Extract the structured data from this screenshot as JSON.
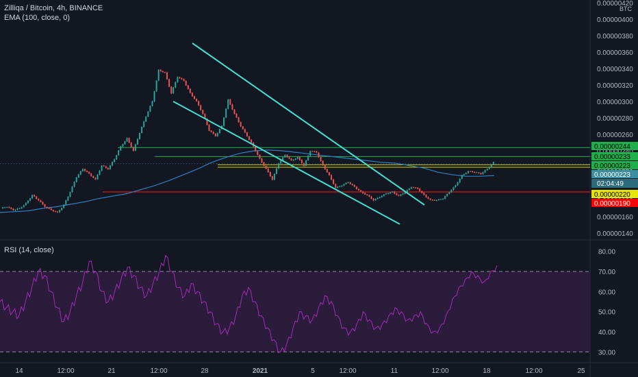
{
  "header": {
    "symbol_line": "Zilliqa / Bitcoin, 4h, BINANCE",
    "ema_line": "EMA (100, close, 0)",
    "rsi_line": "RSI (14, close)",
    "currency": "BTC"
  },
  "colors": {
    "background": "#131722",
    "up": "#26a69a",
    "down": "#ef5350",
    "ema": "#2a7fc2",
    "channel": "#40e0d0",
    "green_level": "#22b14c",
    "yellow_level": "#d4d400",
    "red_level": "#ff1a1a",
    "rsi_line": "#9c27b0",
    "rsi_band": "#2e1d3d"
  },
  "chart_data": [
    {
      "type": "candlestick",
      "title": "Zilliqa / Bitcoin, 4h, BINANCE",
      "series": [
        {
          "name": "Zilliqa / Bitcoin",
          "description": "4h candles; close path (approx, BTC)",
          "values": [
            1.7e-06,
            1.72e-06,
            1.68e-06,
            1.7e-06,
            1.76e-06,
            1.86e-06,
            1.8e-06,
            1.72e-06,
            1.68e-06,
            1.65e-06,
            1.74e-06,
            1.9e-06,
            2.08e-06,
            2.18e-06,
            2.12e-06,
            2.05e-06,
            2.22e-06,
            2.18e-06,
            2.3e-06,
            2.45e-06,
            2.55e-06,
            2.4e-06,
            2.62e-06,
            2.82e-06,
            3e-06,
            3.38e-06,
            3.35e-06,
            3.1e-06,
            3.3e-06,
            3.25e-06,
            3.1e-06,
            3e-06,
            2.85e-06,
            2.65e-06,
            2.58e-06,
            2.7e-06,
            3.02e-06,
            2.85e-06,
            2.7e-06,
            2.58e-06,
            2.45e-06,
            2.3e-06,
            2.18e-06,
            2.05e-06,
            2.25e-06,
            2.35e-06,
            2.28e-06,
            2.32e-06,
            2.22e-06,
            2.4e-06,
            2.38e-06,
            2.22e-06,
            2.1e-06,
            1.95e-06,
            1.98e-06,
            2.02e-06,
            1.96e-06,
            1.9e-06,
            1.86e-06,
            1.8e-06,
            1.84e-06,
            1.88e-06,
            1.9e-06,
            1.85e-06,
            1.9e-06,
            1.96e-06,
            1.94e-06,
            1.86e-06,
            1.8e-06,
            1.8e-06,
            1.82e-06,
            1.9e-06,
            1.98e-06,
            2.1e-06,
            2.15e-06,
            2.14e-06,
            2.12e-06,
            2.18e-06,
            2.26e-06
          ]
        },
        {
          "name": "EMA (100, close, 0)",
          "values": [
            1.65e-06,
            1.66e-06,
            1.67e-06,
            1.7e-06,
            1.72e-06,
            1.75e-06,
            1.78e-06,
            1.82e-06,
            1.85e-06,
            1.88e-06,
            1.93e-06,
            1.98e-06,
            2.04e-06,
            2.11e-06,
            2.18e-06,
            2.26e-06,
            2.32e-06,
            2.37e-06,
            2.4e-06,
            2.41e-06,
            2.4e-06,
            2.38e-06,
            2.36e-06,
            2.34e-06,
            2.32e-06,
            2.3e-06,
            2.28e-06,
            2.26e-06,
            2.25e-06,
            2.22e-06,
            2.19e-06,
            2.14e-06,
            2.11e-06,
            2.09e-06,
            2.09e-06,
            2.1e-06
          ]
        }
      ],
      "x_tick_labels": [
        "14",
        "12:00",
        "21",
        "12:00",
        "28",
        "2021",
        "5",
        "12:00",
        "11",
        "12:00",
        "18",
        "12:00",
        "25"
      ],
      "y_tick_labels": [
        "0.00000420",
        "0.00000400",
        "0.00000380",
        "0.00000360",
        "0.00000340",
        "0.00000320",
        "0.00000300",
        "0.00000280",
        "0.00000260",
        "0.00000240",
        "0.00000220",
        "0.00000200",
        "0.00000180",
        "0.00000160",
        "0.00000140"
      ],
      "ylim": [
        1.3e-06,
        4.2e-06
      ],
      "horizontal_levels": [
        {
          "value": 2.44e-06,
          "label": "0.00000244",
          "color": "green"
        },
        {
          "value": 2.33e-06,
          "label": "0.00000233",
          "color": "green"
        },
        {
          "value": 2.23e-06,
          "label": "0.00000223",
          "color": "yellow"
        },
        {
          "value": 2.2e-06,
          "label": "0.00000220",
          "color": "yellow"
        },
        {
          "value": 1.9e-06,
          "label": "0.00000190",
          "color": "red"
        }
      ],
      "price_badges": [
        {
          "label": "0.00000223"
        },
        {
          "label": "02:04:49"
        }
      ],
      "channel_lines": "descending channel (two parallel trend lines)"
    },
    {
      "type": "line",
      "title": "RSI (14, close)",
      "series": [
        {
          "name": "RSI (14, close)",
          "values": [
            55,
            52,
            50,
            48,
            55,
            62,
            70,
            68,
            60,
            52,
            45,
            50,
            58,
            65,
            75,
            70,
            60,
            55,
            60,
            66,
            72,
            68,
            62,
            58,
            64,
            70,
            78,
            70,
            62,
            58,
            64,
            60,
            55,
            50,
            44,
            40,
            42,
            48,
            58,
            62,
            55,
            48,
            42,
            36,
            30,
            34,
            42,
            50,
            48,
            46,
            52,
            58,
            55,
            48,
            42,
            40,
            44,
            50,
            46,
            42,
            44,
            48,
            52,
            50,
            46,
            48,
            50,
            44,
            40,
            42,
            48,
            56,
            62,
            66,
            70,
            68,
            65,
            70,
            73
          ]
        }
      ],
      "y_tick_labels": [
        "80.00",
        "70.00",
        "60.00",
        "50.00",
        "40.00",
        "30.00"
      ],
      "ylim": [
        25,
        85
      ],
      "bands": [
        70,
        30
      ]
    }
  ]
}
